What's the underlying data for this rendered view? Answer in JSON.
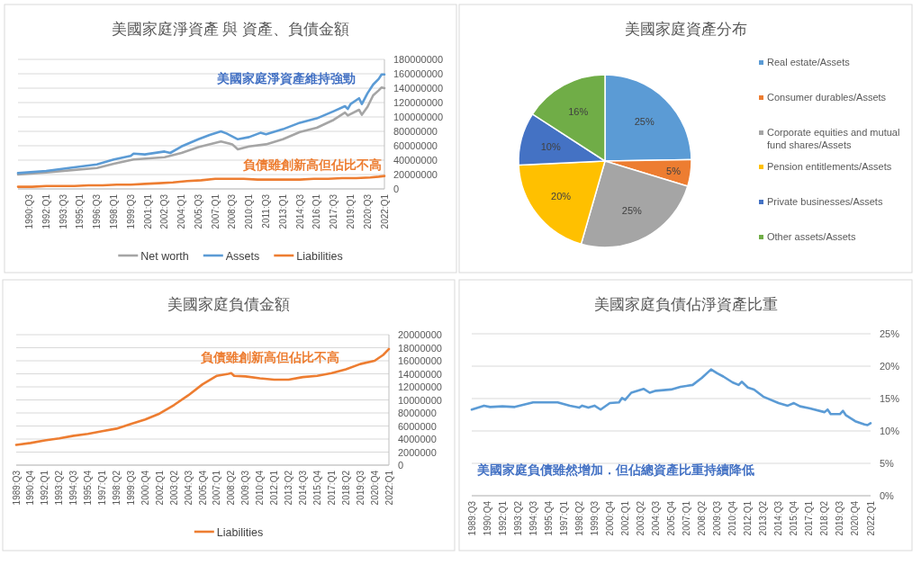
{
  "chart_data": [
    {
      "type": "line",
      "title": "美國家庭淨資產 與 資產、負債金額",
      "annotations": [
        "美國家庭淨資產維持強勁",
        "負債雖創新高但佔比不高"
      ],
      "xlim": [
        "1989-07",
        "2022-01"
      ],
      "xticks": [
        {
          "value": "1990-07",
          "label": "1990:Q3"
        },
        {
          "value": "1992-01",
          "label": "1992:Q1"
        },
        {
          "value": "1993-07",
          "label": "1993:Q3"
        },
        {
          "value": "1995-01",
          "label": "1995:Q1"
        },
        {
          "value": "1996-07",
          "label": "1996:Q3"
        },
        {
          "value": "1998-01",
          "label": "1998:Q1"
        },
        {
          "value": "1999-07",
          "label": "1999:Q3"
        },
        {
          "value": "2001-01",
          "label": "2001:Q1"
        },
        {
          "value": "2002-07",
          "label": "2002:Q3"
        },
        {
          "value": "2004-01",
          "label": "2004:Q1"
        },
        {
          "value": "2005-07",
          "label": "2005:Q3"
        },
        {
          "value": "2007-01",
          "label": "2007:Q1"
        },
        {
          "value": "2008-07",
          "label": "2008:Q3"
        },
        {
          "value": "2010-01",
          "label": "2010:Q1"
        },
        {
          "value": "2011-07",
          "label": "2011:Q3"
        },
        {
          "value": "2013-01",
          "label": "2013:Q1"
        },
        {
          "value": "2014-07",
          "label": "2014:Q3"
        },
        {
          "value": "2016-01",
          "label": "2016:Q1"
        },
        {
          "value": "2017-07",
          "label": "2017:Q3"
        },
        {
          "value": "2019-01",
          "label": "2019:Q1"
        },
        {
          "value": "2020-07",
          "label": "2020:Q3"
        },
        {
          "value": "2022-01",
          "label": "2022:Q1"
        }
      ],
      "ylim": [
        0,
        180000000
      ],
      "yticks": [
        0,
        20000000,
        40000000,
        60000000,
        80000000,
        100000000,
        120000000,
        140000000,
        160000000,
        180000000
      ],
      "grid": "y",
      "legend": "bottom",
      "series": [
        {
          "name": "Net worth",
          "color": "#a5a5a5",
          "x": [
            "1989-07",
            "1992-01",
            "1996-07",
            "1998-01",
            "1999-10",
            "2002-07",
            "2004-01",
            "2005-07",
            "2007-07",
            "2008-07",
            "2009-01",
            "2010-01",
            "2011-07",
            "2013-01",
            "2014-07",
            "2016-01",
            "2017-07",
            "2018-07",
            "2018-10",
            "2019-10",
            "2020-01",
            "2020-07",
            "2021-01",
            "2021-07",
            "2021-10",
            "2022-01"
          ],
          "values": [
            20000000,
            23000000,
            29000000,
            35000000,
            41000000,
            44000000,
            50000000,
            58000000,
            66000000,
            62000000,
            55000000,
            59000000,
            62000000,
            69000000,
            79000000,
            85000000,
            96000000,
            106000000,
            102000000,
            110000000,
            103000000,
            114000000,
            130000000,
            137000000,
            141000000,
            140000000
          ]
        },
        {
          "name": "Assets",
          "color": "#5b9bd5",
          "x": [
            "1989-07",
            "1992-01",
            "1994-01",
            "1996-07",
            "1998-01",
            "1999-07",
            "1999-10",
            "2000-10",
            "2002-07",
            "2003-01",
            "2004-01",
            "2005-07",
            "2006-07",
            "2007-07",
            "2008-01",
            "2008-07",
            "2009-01",
            "2010-01",
            "2011-01",
            "2011-07",
            "2013-01",
            "2014-07",
            "2016-01",
            "2017-07",
            "2018-07",
            "2018-10",
            "2019-01",
            "2019-10",
            "2020-01",
            "2020-07",
            "2021-01",
            "2021-07",
            "2021-10",
            "2022-01"
          ],
          "values": [
            22000000,
            25000000,
            29000000,
            34000000,
            41000000,
            46000000,
            49000000,
            48000000,
            52000000,
            50000000,
            59000000,
            69000000,
            75000000,
            80000000,
            77000000,
            73000000,
            69000000,
            72000000,
            78000000,
            76000000,
            83000000,
            92000000,
            98000000,
            108000000,
            115000000,
            111000000,
            118000000,
            126000000,
            118000000,
            133000000,
            145000000,
            153000000,
            159000000,
            159000000
          ]
        },
        {
          "name": "Liabilities",
          "color": "#ed7d31",
          "x": [
            "1989-07",
            "1990-10",
            "1992-01",
            "1993-04",
            "1994-07",
            "1995-10",
            "1997-01",
            "1998-04",
            "1999-07",
            "2000-10",
            "2002-01",
            "2003-04",
            "2004-07",
            "2005-10",
            "2007-01",
            "2008-01",
            "2008-04",
            "2008-07",
            "2009-07",
            "2010-10",
            "2012-01",
            "2013-04",
            "2014-07",
            "2015-10",
            "2017-01",
            "2018-04",
            "2019-07",
            "2020-10",
            "2021-07",
            "2022-01"
          ],
          "values": [
            3000000,
            3000000,
            4000000,
            4000000,
            4000000,
            5000000,
            5000000,
            6000000,
            6000000,
            7000000,
            8000000,
            9000000,
            11000000,
            12000000,
            14000000,
            14000000,
            14000000,
            14000000,
            14000000,
            13000000,
            13000000,
            13000000,
            13000000,
            14000000,
            14000000,
            15000000,
            15000000,
            16000000,
            17000000,
            18000000
          ]
        }
      ]
    },
    {
      "type": "pie",
      "title": "美國家庭資產分布",
      "categories": [
        "Real estate/Assets",
        "Consumer durables/Assets",
        "Corporate equities and mutual fund shares/Assets",
        "Pension entitlements/Assets",
        "Private businesses/Assets",
        "Other assets/Assets"
      ],
      "values": [
        25,
        5,
        25,
        20,
        10,
        16
      ],
      "colors": [
        "#5b9bd5",
        "#ed7d31",
        "#a5a5a5",
        "#ffc000",
        "#4472c4",
        "#70ad47"
      ],
      "value_labels": [
        "25%",
        "5%",
        "25%",
        "20%",
        "10%",
        "16%"
      ],
      "legend": "right"
    },
    {
      "type": "line",
      "title": "美國家庭負債金額",
      "annotations": [
        "負債雖創新高但佔比不高"
      ],
      "xlim": [
        "1989-07",
        "2022-01"
      ],
      "xticks": [
        {
          "value": "1989-07",
          "label": "1989:Q3"
        },
        {
          "value": "1990-10",
          "label": "1990:Q4"
        },
        {
          "value": "1992-01",
          "label": "1992:Q1"
        },
        {
          "value": "1993-04",
          "label": "1993:Q2"
        },
        {
          "value": "1994-07",
          "label": "1994:Q3"
        },
        {
          "value": "1995-10",
          "label": "1995:Q4"
        },
        {
          "value": "1997-01",
          "label": "1997:Q1"
        },
        {
          "value": "1998-04",
          "label": "1998:Q2"
        },
        {
          "value": "1999-07",
          "label": "1999:Q3"
        },
        {
          "value": "2000-10",
          "label": "2000:Q4"
        },
        {
          "value": "2002-01",
          "label": "2002:Q1"
        },
        {
          "value": "2003-04",
          "label": "2003:Q2"
        },
        {
          "value": "2004-07",
          "label": "2004:Q3"
        },
        {
          "value": "2005-10",
          "label": "2005:Q4"
        },
        {
          "value": "2007-01",
          "label": "2007:Q1"
        },
        {
          "value": "2008-04",
          "label": "2008:Q2"
        },
        {
          "value": "2009-07",
          "label": "2009:Q3"
        },
        {
          "value": "2010-10",
          "label": "2010:Q4"
        },
        {
          "value": "2012-01",
          "label": "2012:Q1"
        },
        {
          "value": "2013-04",
          "label": "2013:Q2"
        },
        {
          "value": "2014-07",
          "label": "2014:Q3"
        },
        {
          "value": "2015-10",
          "label": "2015:Q4"
        },
        {
          "value": "2017-01",
          "label": "2017:Q1"
        },
        {
          "value": "2018-04",
          "label": "2018:Q2"
        },
        {
          "value": "2019-07",
          "label": "2019:Q3"
        },
        {
          "value": "2020-10",
          "label": "2020:Q4"
        },
        {
          "value": "2022-01",
          "label": "2022:Q1"
        }
      ],
      "ylim": [
        0,
        20000000
      ],
      "yticks": [
        0,
        2000000,
        4000000,
        6000000,
        8000000,
        10000000,
        12000000,
        14000000,
        16000000,
        18000000,
        20000000
      ],
      "grid": "y",
      "legend": "bottom",
      "x": [
        "1989-07",
        "1990-10",
        "1992-01",
        "1993-04",
        "1994-07",
        "1995-10",
        "1997-01",
        "1998-04",
        "1999-07",
        "2000-10",
        "2002-01",
        "2003-04",
        "2004-07",
        "2005-10",
        "2007-01",
        "2008-01",
        "2008-04",
        "2008-07",
        "2009-07",
        "2010-10",
        "2012-01",
        "2013-04",
        "2014-07",
        "2015-10",
        "2017-01",
        "2018-04",
        "2019-07",
        "2020-10",
        "2021-07",
        "2022-01"
      ],
      "series": [
        {
          "name": "Liabilities",
          "color": "#ed7d31",
          "values": [
            3100000,
            3400000,
            3800000,
            4100000,
            4500000,
            4800000,
            5200000,
            5600000,
            6300000,
            7000000,
            7900000,
            9200000,
            10700000,
            12400000,
            13700000,
            14000000,
            14100000,
            13700000,
            13600000,
            13300000,
            13100000,
            13100000,
            13500000,
            13700000,
            14100000,
            14700000,
            15500000,
            16000000,
            16900000,
            17800000
          ]
        }
      ]
    },
    {
      "type": "line",
      "title": "美國家庭負債佔淨資產比重",
      "annotations": [
        "美國家庭負債雖然增加．但佔總資產比重持續降低"
      ],
      "xlim": [
        "1989-07",
        "2022-01"
      ],
      "xticks": [
        {
          "value": "1989-07",
          "label": "1989:Q3"
        },
        {
          "value": "1990-10",
          "label": "1990:Q4"
        },
        {
          "value": "1992-01",
          "label": "1992:Q1"
        },
        {
          "value": "1993-04",
          "label": "1993:Q2"
        },
        {
          "value": "1994-07",
          "label": "1994:Q3"
        },
        {
          "value": "1995-10",
          "label": "1995:Q4"
        },
        {
          "value": "1997-01",
          "label": "1997:Q1"
        },
        {
          "value": "1998-04",
          "label": "1998:Q2"
        },
        {
          "value": "1999-07",
          "label": "1999:Q3"
        },
        {
          "value": "2000-10",
          "label": "2000:Q4"
        },
        {
          "value": "2002-01",
          "label": "2002:Q1"
        },
        {
          "value": "2003-04",
          "label": "2003:Q2"
        },
        {
          "value": "2004-07",
          "label": "2004:Q3"
        },
        {
          "value": "2005-10",
          "label": "2005:Q4"
        },
        {
          "value": "2007-01",
          "label": "2007:Q1"
        },
        {
          "value": "2008-04",
          "label": "2008:Q2"
        },
        {
          "value": "2009-07",
          "label": "2009:Q3"
        },
        {
          "value": "2010-10",
          "label": "2010:Q4"
        },
        {
          "value": "2012-01",
          "label": "2012:Q1"
        },
        {
          "value": "2013-04",
          "label": "2013:Q2"
        },
        {
          "value": "2014-07",
          "label": "2014:Q3"
        },
        {
          "value": "2015-10",
          "label": "2015:Q4"
        },
        {
          "value": "2017-01",
          "label": "2017:Q1"
        },
        {
          "value": "2018-04",
          "label": "2018:Q2"
        },
        {
          "value": "2019-07",
          "label": "2019:Q3"
        },
        {
          "value": "2020-10",
          "label": "2020:Q4"
        },
        {
          "value": "2022-01",
          "label": "2022:Q1"
        }
      ],
      "ylim": [
        0,
        25
      ],
      "yticks": [
        {
          "value": 0,
          "label": "0%"
        },
        {
          "value": 5,
          "label": "5%"
        },
        {
          "value": 10,
          "label": "10%"
        },
        {
          "value": 15,
          "label": "15%"
        },
        {
          "value": 20,
          "label": "20%"
        },
        {
          "value": 25,
          "label": "25%"
        }
      ],
      "grid": "y",
      "x": [
        "1989-07",
        "1990-07",
        "1991-01",
        "1992-01",
        "1993-01",
        "1994-07",
        "1996-07",
        "1997-07",
        "1998-04",
        "1998-07",
        "1999-01",
        "1999-07",
        "2000-01",
        "2000-10",
        "2001-07",
        "2001-10",
        "2002-01",
        "2002-07",
        "2003-07",
        "2004-01",
        "2004-07",
        "2005-10",
        "2006-07",
        "2007-07",
        "2008-04",
        "2009-01",
        "2009-07",
        "2010-01",
        "2010-10",
        "2011-04",
        "2011-07",
        "2012-01",
        "2012-07",
        "2013-04",
        "2014-07",
        "2015-04",
        "2015-10",
        "2016-04",
        "2017-01",
        "2018-04",
        "2018-07",
        "2018-10",
        "2019-07",
        "2019-10",
        "2020-01",
        "2020-10",
        "2021-07",
        "2021-10",
        "2022-01"
      ],
      "series": [
        {
          "color": "#5b9bd5",
          "values": [
            13.3,
            13.9,
            13.7,
            13.8,
            13.7,
            14.4,
            14.4,
            13.9,
            13.6,
            13.9,
            13.6,
            13.9,
            13.3,
            14.3,
            14.4,
            15.1,
            14.8,
            15.9,
            16.5,
            15.9,
            16.2,
            16.4,
            16.8,
            17.1,
            18.2,
            19.5,
            18.9,
            18.4,
            17.5,
            17.1,
            17.6,
            16.7,
            16.4,
            15.3,
            14.3,
            13.9,
            14.3,
            13.8,
            13.5,
            12.9,
            13.3,
            12.6,
            12.6,
            13.1,
            12.4,
            11.5,
            11.0,
            10.9,
            11.2
          ]
        }
      ]
    }
  ]
}
